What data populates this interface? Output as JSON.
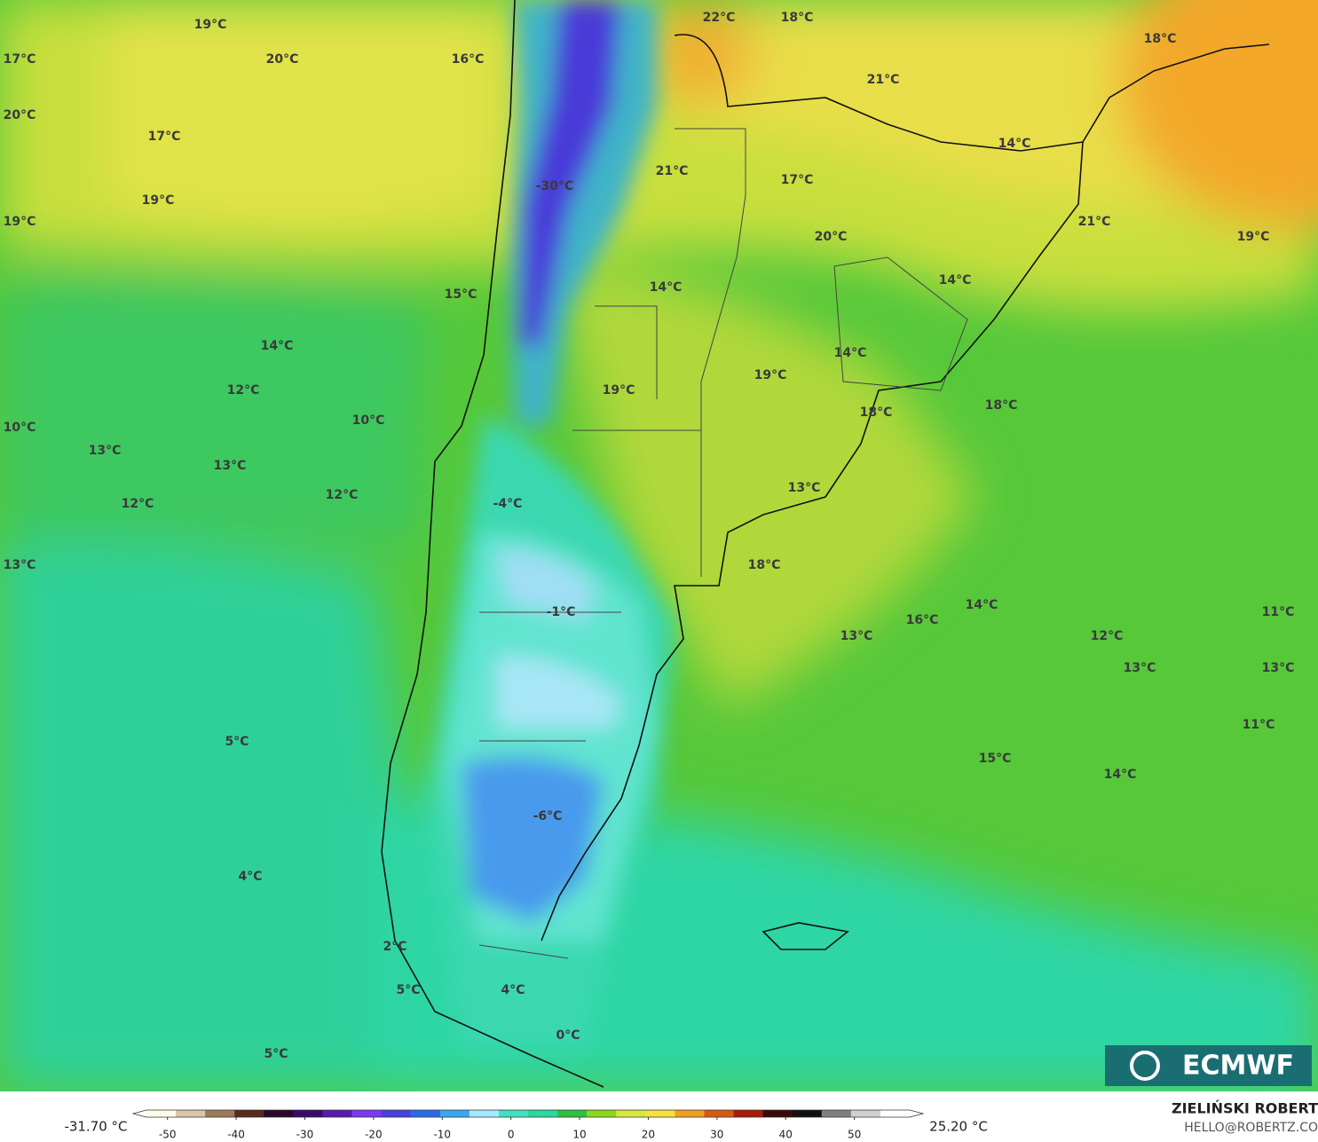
{
  "map": {
    "labels": [
      "19°C",
      "22°C",
      "18°C",
      "18°C",
      "17°C",
      "20°C",
      "16°C",
      "21°C",
      "20°C",
      "17°C",
      "14°C",
      "21°C",
      "17°C",
      "-30°C",
      "19°C",
      "19°C",
      "21°C",
      "20°C",
      "19°C",
      "14°C",
      "14°C",
      "15°C",
      "14°C",
      "14°C",
      "19°C",
      "12°C",
      "19°C",
      "18°C",
      "18°C",
      "10°C",
      "10°C",
      "13°C",
      "13°C",
      "13°C",
      "12°C",
      "12°C",
      "-4°C",
      "13°C",
      "18°C",
      "14°C",
      "-1°C",
      "11°C",
      "16°C",
      "13°C",
      "12°C",
      "13°C",
      "13°C",
      "11°C",
      "5°C",
      "15°C",
      "14°C",
      "-6°C",
      "4°C",
      "2°C",
      "5°C",
      "4°C",
      "0°C",
      "5°C"
    ]
  },
  "logo": "ECMWF",
  "credits": {
    "author": "ZIELIŃSKI ROBERT",
    "contact": "HELLO@ROBERTZ.CO"
  },
  "colorbar": {
    "min_label": "-31.70 °C",
    "max_label": "25.20 °C",
    "lim": [
      -55,
      60
    ],
    "ticks": [
      -50,
      -40,
      -30,
      -20,
      -10,
      0,
      10,
      20,
      30,
      40,
      50
    ],
    "colors": [
      "#fffbe8",
      "#d9c6a8",
      "#9c7a5a",
      "#5a2a1a",
      "#2a0a2a",
      "#3a0a6a",
      "#5a1ab0",
      "#7a3af0",
      "#4a40e0",
      "#2a6ae8",
      "#3aa8f0",
      "#a8e8ff",
      "#40e0c0",
      "#2ad8a0",
      "#30c040",
      "#8ad81a",
      "#d8e840",
      "#f8e040",
      "#f0a020",
      "#d85a10",
      "#a81a0a",
      "#3a0a0a",
      "#101010",
      "#808080",
      "#d0d0d0",
      "#ffffff"
    ]
  }
}
